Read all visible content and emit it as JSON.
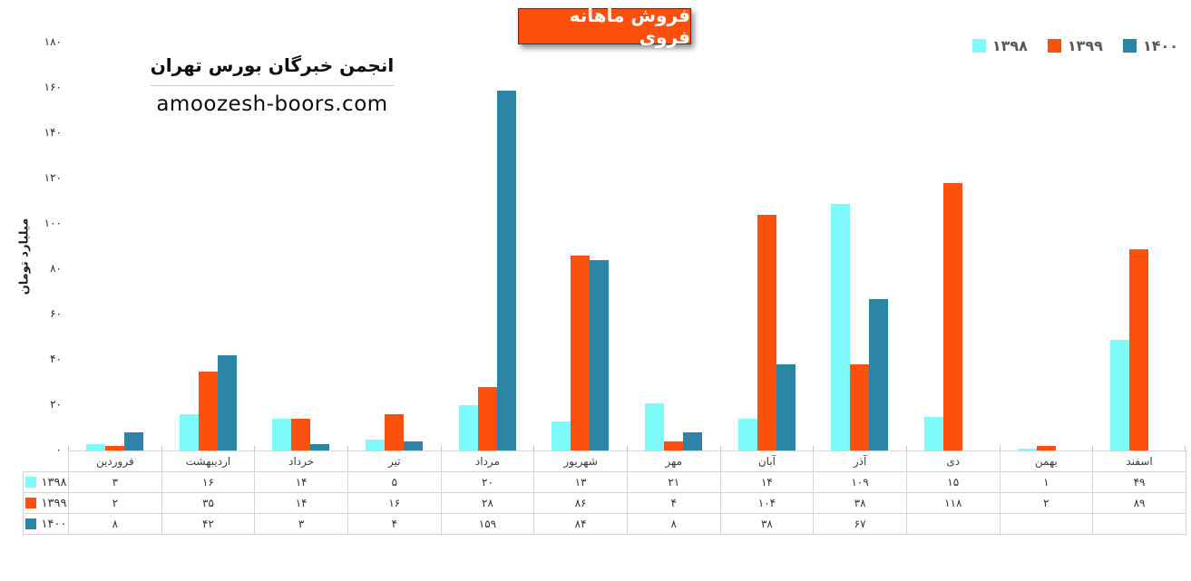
{
  "title_badge": {
    "text": "فروش ماهانه فروی",
    "bg_color": "#FC500F",
    "text_color": "#FFFFFF"
  },
  "annotation": {
    "line1": "انجمن خبرگان بورس تهران",
    "line2": "amoozesh-boors.com"
  },
  "y_axis_title": "میلیارد تومان",
  "colors": {
    "series_1398": "#80FBFD",
    "series_1399": "#FC500F",
    "series_1400": "#2C85A5",
    "table_border": "#D5D5D5",
    "legend_text": "#595959"
  },
  "chart_data": {
    "type": "bar",
    "title": "فروش ماهانه فروی",
    "xlabel": "",
    "ylabel": "میلیارد تومان",
    "ylim": [
      0,
      180
    ],
    "grid": false,
    "legend_position": "top-right",
    "data_table_attached": true,
    "categories": [
      "فروردین",
      "اردیبهشت",
      "خرداد",
      "تیر",
      "مرداد",
      "شهریور",
      "مهر",
      "آبان",
      "آذر",
      "دی",
      "بهمن",
      "اسفند"
    ],
    "yticks": {
      "values": [
        0,
        20,
        40,
        60,
        80,
        100,
        120,
        140,
        160,
        180
      ],
      "labels": [
        "۰",
        "۲۰",
        "۴۰",
        "۶۰",
        "۸۰",
        "۱۰۰",
        "۱۲۰",
        "۱۴۰",
        "۱۶۰",
        "۱۸۰"
      ]
    },
    "series": [
      {
        "id": "1398",
        "name": "۱۳۹۸",
        "color": "#80FBFD",
        "values": [
          3,
          16,
          14,
          5,
          20,
          13,
          21,
          14,
          109,
          15,
          1,
          49
        ],
        "labels": [
          "۳",
          "۱۶",
          "۱۴",
          "۵",
          "۲۰",
          "۱۳",
          "۲۱",
          "۱۴",
          "۱۰۹",
          "۱۵",
          "۱",
          "۴۹"
        ]
      },
      {
        "id": "1399",
        "name": "۱۳۹۹",
        "color": "#FC500F",
        "values": [
          2,
          35,
          14,
          16,
          28,
          86,
          4,
          104,
          38,
          118,
          2,
          89
        ],
        "labels": [
          "۲",
          "۳۵",
          "۱۴",
          "۱۶",
          "۲۸",
          "۸۶",
          "۴",
          "۱۰۴",
          "۳۸",
          "۱۱۸",
          "۲",
          "۸۹"
        ]
      },
      {
        "id": "1400",
        "name": "۱۴۰۰",
        "color": "#2C85A5",
        "values": [
          8,
          42,
          3,
          4,
          159,
          84,
          8,
          38,
          67,
          null,
          null,
          null
        ],
        "labels": [
          "۸",
          "۴۲",
          "۳",
          "۴",
          "۱۵۹",
          "۸۴",
          "۸",
          "۳۸",
          "۶۷",
          "",
          "",
          ""
        ]
      }
    ]
  }
}
